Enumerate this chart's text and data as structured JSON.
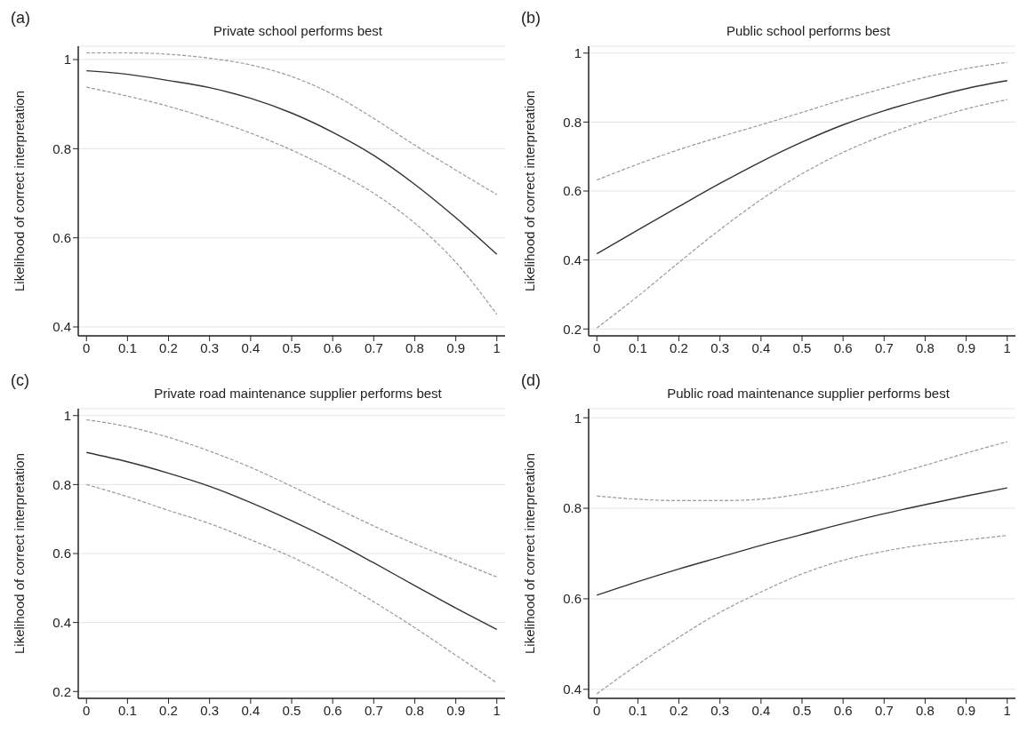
{
  "chart_data": [
    {
      "type": "line",
      "title": "Private school performs best",
      "ylabel": "Likelihood of correct interpretation",
      "annotations": [
        "(a)"
      ],
      "x": [
        0,
        0.1,
        0.2,
        0.3,
        0.4,
        0.5,
        0.6,
        0.7,
        0.8,
        0.9,
        1
      ],
      "xlim": [
        -0.02,
        1.02
      ],
      "xticks": [
        0,
        0.1,
        0.2,
        0.3,
        0.4,
        0.5,
        0.6,
        0.7,
        0.8,
        0.9,
        1
      ],
      "ylim": [
        0.38,
        1.03
      ],
      "yticks": [
        0.4,
        0.6,
        0.8,
        1
      ],
      "grid": "y",
      "series": [
        {
          "color": "#333333",
          "line_style": "solid",
          "values": [
            0.975,
            0.967,
            0.953,
            0.937,
            0.913,
            0.88,
            0.837,
            0.785,
            0.72,
            0.645,
            0.563
          ]
        },
        {
          "color": "#999999",
          "line_style": "dashed",
          "values": [
            1.015,
            1.015,
            1.012,
            1.003,
            0.988,
            0.962,
            0.922,
            0.868,
            0.808,
            0.752,
            0.697
          ]
        },
        {
          "color": "#999999",
          "line_style": "dashed",
          "values": [
            0.938,
            0.918,
            0.895,
            0.867,
            0.835,
            0.797,
            0.752,
            0.7,
            0.633,
            0.545,
            0.428
          ]
        }
      ]
    },
    {
      "type": "line",
      "title": "Public school performs best",
      "ylabel": "Likelihood of correct interpretation",
      "annotations": [
        "(b)"
      ],
      "x": [
        0,
        0.1,
        0.2,
        0.3,
        0.4,
        0.5,
        0.6,
        0.7,
        0.8,
        0.9,
        1
      ],
      "xlim": [
        -0.02,
        1.02
      ],
      "xticks": [
        0,
        0.1,
        0.2,
        0.3,
        0.4,
        0.5,
        0.6,
        0.7,
        0.8,
        0.9,
        1
      ],
      "ylim": [
        0.18,
        1.02
      ],
      "yticks": [
        0.2,
        0.4,
        0.6,
        0.8,
        1
      ],
      "grid": "y",
      "series": [
        {
          "color": "#333333",
          "line_style": "solid",
          "values": [
            0.418,
            0.487,
            0.555,
            0.622,
            0.685,
            0.742,
            0.792,
            0.833,
            0.867,
            0.897,
            0.92
          ]
        },
        {
          "color": "#999999",
          "line_style": "dashed",
          "values": [
            0.632,
            0.678,
            0.72,
            0.757,
            0.792,
            0.828,
            0.865,
            0.898,
            0.93,
            0.955,
            0.973
          ]
        },
        {
          "color": "#999999",
          "line_style": "dashed",
          "values": [
            0.203,
            0.295,
            0.393,
            0.488,
            0.575,
            0.65,
            0.712,
            0.762,
            0.803,
            0.838,
            0.865
          ]
        }
      ]
    },
    {
      "type": "line",
      "title": "Private road maintenance supplier performs best",
      "ylabel": "Likelihood of correct interpretation",
      "annotations": [
        "(c)"
      ],
      "x": [
        0,
        0.1,
        0.2,
        0.3,
        0.4,
        0.5,
        0.6,
        0.7,
        0.8,
        0.9,
        1
      ],
      "xlim": [
        -0.02,
        1.02
      ],
      "xticks": [
        0,
        0.1,
        0.2,
        0.3,
        0.4,
        0.5,
        0.6,
        0.7,
        0.8,
        0.9,
        1
      ],
      "ylim": [
        0.18,
        1.02
      ],
      "yticks": [
        0.2,
        0.4,
        0.6,
        0.8,
        1
      ],
      "grid": "y",
      "series": [
        {
          "color": "#333333",
          "line_style": "solid",
          "values": [
            0.893,
            0.866,
            0.833,
            0.795,
            0.748,
            0.695,
            0.637,
            0.573,
            0.507,
            0.442,
            0.38
          ]
        },
        {
          "color": "#999999",
          "line_style": "dashed",
          "values": [
            0.988,
            0.968,
            0.937,
            0.897,
            0.85,
            0.795,
            0.737,
            0.68,
            0.628,
            0.58,
            0.532
          ]
        },
        {
          "color": "#999999",
          "line_style": "dashed",
          "values": [
            0.8,
            0.765,
            0.725,
            0.687,
            0.64,
            0.59,
            0.53,
            0.46,
            0.385,
            0.305,
            0.225
          ]
        }
      ]
    },
    {
      "type": "line",
      "title": "Public road maintenance supplier performs best",
      "ylabel": "Likelihood of correct interpretation",
      "annotations": [
        "(d)"
      ],
      "x": [
        0,
        0.1,
        0.2,
        0.3,
        0.4,
        0.5,
        0.6,
        0.7,
        0.8,
        0.9,
        1
      ],
      "xlim": [
        -0.02,
        1.02
      ],
      "xticks": [
        0,
        0.1,
        0.2,
        0.3,
        0.4,
        0.5,
        0.6,
        0.7,
        0.8,
        0.9,
        1
      ],
      "ylim": [
        0.38,
        1.02
      ],
      "yticks": [
        0.4,
        0.6,
        0.8,
        1
      ],
      "grid": "y",
      "series": [
        {
          "color": "#333333",
          "line_style": "solid",
          "values": [
            0.608,
            0.638,
            0.666,
            0.692,
            0.718,
            0.742,
            0.766,
            0.788,
            0.808,
            0.827,
            0.845
          ]
        },
        {
          "color": "#999999",
          "line_style": "dashed",
          "values": [
            0.827,
            0.82,
            0.817,
            0.817,
            0.82,
            0.832,
            0.848,
            0.87,
            0.895,
            0.922,
            0.947
          ]
        },
        {
          "color": "#999999",
          "line_style": "dashed",
          "values": [
            0.39,
            0.455,
            0.515,
            0.57,
            0.615,
            0.655,
            0.685,
            0.705,
            0.72,
            0.73,
            0.74
          ]
        }
      ]
    }
  ]
}
